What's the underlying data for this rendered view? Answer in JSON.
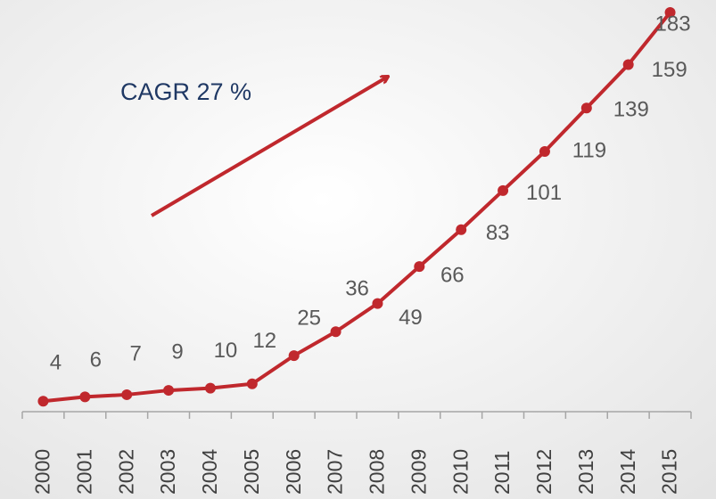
{
  "chart_data": {
    "type": "line",
    "annotation": "CAGR 27 %",
    "categories": [
      "2000",
      "2001",
      "2002",
      "2003",
      "2004",
      "2005",
      "2006",
      "2007",
      "2008",
      "2009",
      "2010",
      "2011",
      "2012",
      "2013",
      "2014",
      "2015"
    ],
    "series": [
      {
        "color": "#c0282d",
        "values": [
          4,
          6,
          7,
          9,
          10,
          12,
          25,
          36,
          49,
          66,
          83,
          101,
          119,
          139,
          159,
          183
        ]
      }
    ]
  }
}
